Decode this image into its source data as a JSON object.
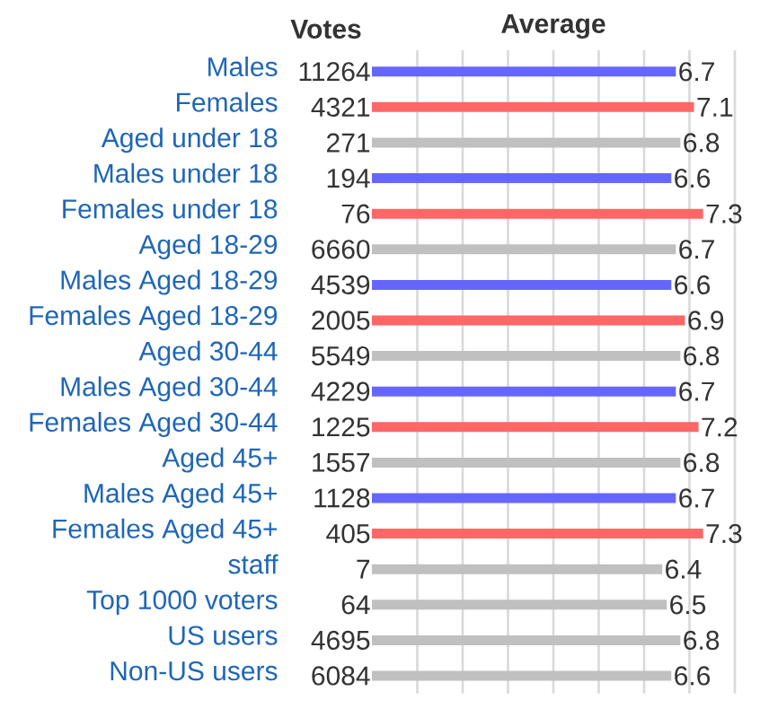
{
  "chart_data": [
    {
      "type": "other",
      "title": "Votes",
      "categories": [
        "Males",
        "Females",
        "Aged under 18",
        "Males under 18",
        "Females under 18",
        "Aged 18-29",
        "Males Aged 18-29",
        "Females Aged 18-29",
        "Aged 30-44",
        "Males Aged 30-44",
        "Females Aged 30-44",
        "Aged 45+",
        "Males Aged 45+",
        "Females Aged 45+",
        "staff",
        "Top 1000 voters",
        "US users",
        "Non-US users"
      ],
      "values": [
        11264,
        4321,
        271,
        194,
        76,
        6660,
        4539,
        2005,
        5549,
        4229,
        1225,
        1557,
        1128,
        405,
        7,
        64,
        4695,
        6084
      ],
      "data_labels": true
    },
    {
      "type": "bar",
      "orientation": "horizontal",
      "title": "Average",
      "categories": [
        null,
        null,
        null,
        null,
        null,
        null,
        null,
        null,
        null,
        null,
        null,
        null,
        null,
        null,
        null,
        null,
        null,
        null
      ],
      "values": [
        6.7,
        7.1,
        6.8,
        6.6,
        7.3,
        6.7,
        6.6,
        6.9,
        6.8,
        6.7,
        7.2,
        6.8,
        6.7,
        7.3,
        6.4,
        6.5,
        6.8,
        6.6
      ],
      "colors": [
        "#6666ff",
        "#ff6666",
        "#c0c0c0",
        "#6666ff",
        "#ff6666",
        "#c0c0c0",
        "#6666ff",
        "#ff6666",
        "#c0c0c0",
        "#6666ff",
        "#ff6666",
        "#c0c0c0",
        "#6666ff",
        "#ff6666",
        "#c0c0c0",
        "#c0c0c0",
        "#c0c0c0",
        "#c0c0c0"
      ],
      "xlim": [
        0,
        8
      ],
      "xticks": [
        {
          "value": 1,
          "label": null
        },
        {
          "value": 2,
          "label": null
        },
        {
          "value": 3,
          "label": null
        },
        {
          "value": 4,
          "label": null
        },
        {
          "value": 5,
          "label": null
        },
        {
          "value": 6,
          "label": null
        },
        {
          "value": 7,
          "label": null
        },
        {
          "value": 8,
          "label": null
        }
      ],
      "grid": "x",
      "data_labels": true,
      "tick_labels": false
    }
  ]
}
